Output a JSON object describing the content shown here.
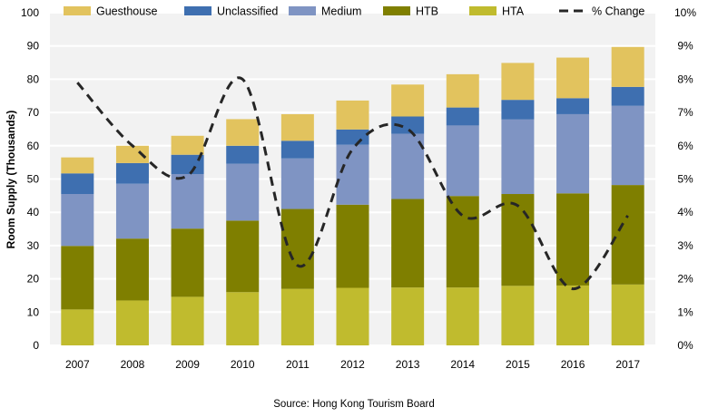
{
  "chart_data": {
    "type": "bar",
    "stacked": true,
    "categories": [
      "2007",
      "2008",
      "2009",
      "2010",
      "2011",
      "2012",
      "2013",
      "2014",
      "2015",
      "2016",
      "2017"
    ],
    "series": [
      {
        "name": "HTA",
        "color": "#c0bb2e",
        "values": [
          10.8,
          13.5,
          14.6,
          16.0,
          17.0,
          17.3,
          17.4,
          17.4,
          17.9,
          18.0,
          18.3
        ]
      },
      {
        "name": "HTB",
        "color": "#7f7f00",
        "values": [
          19.1,
          18.6,
          20.5,
          21.5,
          24.0,
          25.0,
          26.6,
          27.5,
          27.6,
          27.7,
          29.9
        ]
      },
      {
        "name": "Medium",
        "color": "#7f94c3",
        "values": [
          15.6,
          16.5,
          16.4,
          17.1,
          15.2,
          18.0,
          19.6,
          21.2,
          22.4,
          23.8,
          23.8
        ]
      },
      {
        "name": "Unclassified",
        "color": "#3e6fb0",
        "values": [
          6.2,
          6.2,
          5.8,
          5.4,
          5.3,
          4.6,
          5.2,
          5.4,
          5.9,
          4.8,
          5.7
        ]
      },
      {
        "name": "Guesthouse",
        "color": "#e2c35e",
        "values": [
          4.8,
          5.2,
          5.7,
          8.0,
          8.0,
          8.7,
          9.6,
          10.0,
          11.1,
          12.2,
          12.0
        ]
      }
    ],
    "line_series": {
      "name": "% Change",
      "axis": "right",
      "color": "#262626",
      "style": "dashed",
      "values": [
        7.9,
        6.0,
        5.1,
        8.0,
        2.4,
        5.9,
        6.5,
        3.9,
        4.2,
        1.7,
        3.9
      ]
    },
    "ylabel": "Room Supply (Thousands)",
    "xlabel": "",
    "ylim": [
      0,
      100
    ],
    "yticks": [
      "0",
      "10",
      "20",
      "30",
      "40",
      "50",
      "60",
      "70",
      "80",
      "90",
      "100"
    ],
    "y2lim": [
      0,
      10
    ],
    "y2ticks": [
      "0%",
      "1%",
      "2%",
      "3%",
      "4%",
      "5%",
      "6%",
      "7%",
      "8%",
      "9%",
      "10%"
    ],
    "legend": {
      "position": "top",
      "order": [
        "Guesthouse",
        "Unclassified",
        "Medium",
        "HTB",
        "HTA",
        "% Change"
      ]
    },
    "grid": true,
    "plot_background": "#f2f2f2",
    "source": "Source: Hong Kong Tourism Board"
  }
}
